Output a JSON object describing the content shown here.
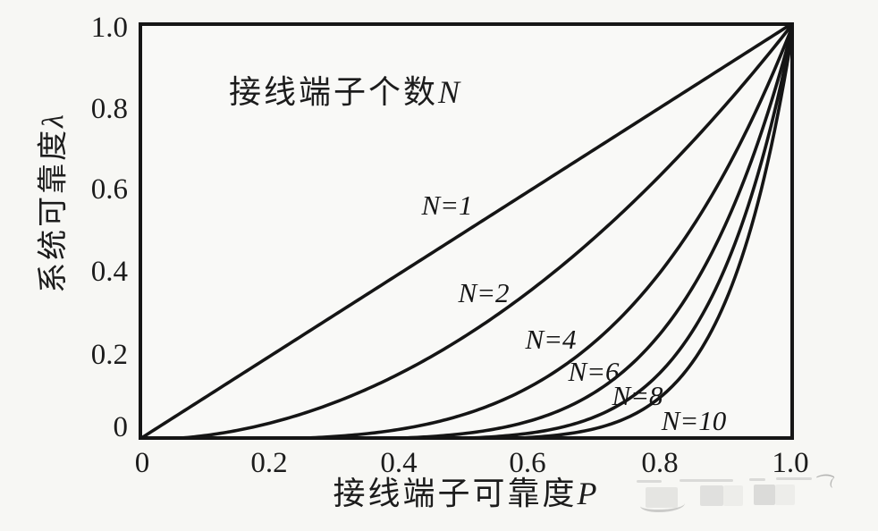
{
  "colors": {
    "background": "#f7f7f4",
    "curve": "#151515",
    "axis": "#161616",
    "text": "#1c1c1c",
    "watermark": "#dcdcdc"
  },
  "chart_data": {
    "type": "line",
    "annotation": {
      "text": "接线端子个数",
      "var": "N",
      "full": "接线端子个数N"
    },
    "xlabel": {
      "text": "接线端子可靠度",
      "var": "P",
      "full": "接线端子可靠度P"
    },
    "ylabel": {
      "text": "系统可靠度",
      "var": "λ",
      "full": "系统可靠度λ"
    },
    "xlim": [
      0,
      1
    ],
    "ylim": [
      0,
      1
    ],
    "grid": false,
    "legend_position": "inline-curve-labels",
    "x_tick_labels": [
      "0",
      "0.2",
      "0.4",
      "0.6",
      "0.8",
      "1.0"
    ],
    "y_tick_labels": [
      "1.0",
      "0.8",
      "0.6",
      "0.4",
      "0.2",
      "0"
    ],
    "x_sample": [
      0,
      0.1,
      0.2,
      0.3,
      0.4,
      0.5,
      0.6,
      0.7,
      0.8,
      0.9,
      1.0
    ],
    "series": [
      {
        "name": "N=1",
        "label": "N=1",
        "exponent": 1,
        "values": [
          0,
          0.1,
          0.2,
          0.3,
          0.4,
          0.5,
          0.6,
          0.7,
          0.8,
          0.9,
          1
        ]
      },
      {
        "name": "N=2",
        "label": "N=2",
        "exponent": 2,
        "values": [
          0,
          0.01,
          0.04,
          0.09,
          0.16,
          0.25,
          0.36,
          0.49,
          0.64,
          0.81,
          1
        ]
      },
      {
        "name": "N=4",
        "label": "N=4",
        "exponent": 4,
        "values": [
          0,
          0.0001,
          0.0016,
          0.0081,
          0.0256,
          0.0625,
          0.1296,
          0.2401,
          0.4096,
          0.6561,
          1
        ]
      },
      {
        "name": "N=6",
        "label": "N=6",
        "exponent": 6,
        "values": [
          0,
          0,
          6e-05,
          0.00073,
          0.0041,
          0.01563,
          0.04666,
          0.11765,
          0.26214,
          0.53144,
          1
        ]
      },
      {
        "name": "N=8",
        "label": "N=8",
        "exponent": 8,
        "values": [
          0,
          0,
          0,
          7e-05,
          0.00066,
          0.00391,
          0.0168,
          0.05765,
          0.16777,
          0.43047,
          1
        ]
      },
      {
        "name": "N=10",
        "label": "N=10",
        "exponent": 10,
        "values": [
          0,
          0,
          0,
          1e-05,
          0.0001,
          0.00098,
          0.00605,
          0.02825,
          0.10737,
          0.34868,
          1
        ]
      }
    ]
  }
}
